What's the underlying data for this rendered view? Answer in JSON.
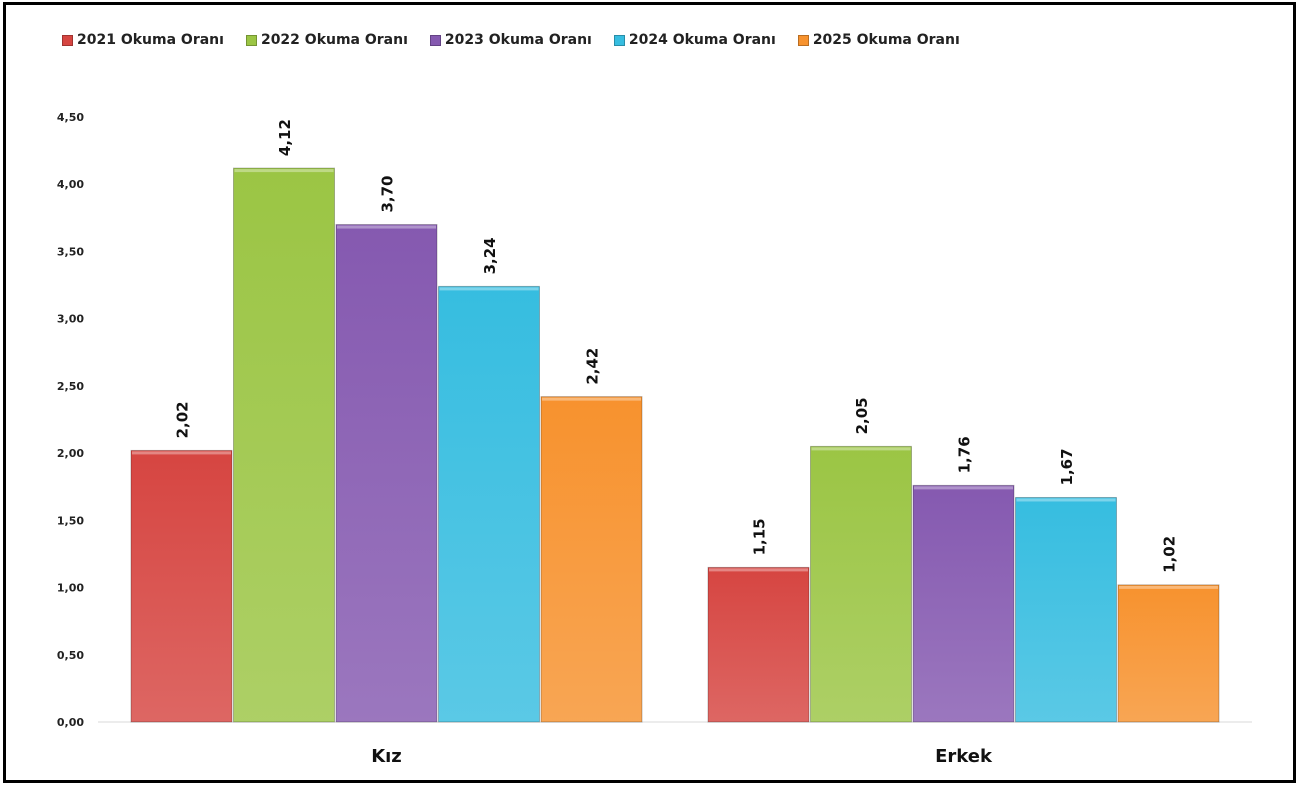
{
  "chart_data": {
    "type": "bar",
    "title": "",
    "xlabel": "",
    "ylabel": "",
    "categories": [
      "Kız",
      "Erkek"
    ],
    "series": [
      {
        "name": "2021 Okuma Oranı",
        "values": [
          2.02,
          1.15
        ],
        "labels": [
          "2,02",
          "1,15"
        ],
        "color": "#d64541"
      },
      {
        "name": "2022 Okuma Oranı",
        "values": [
          4.12,
          2.05
        ],
        "labels": [
          "4,12",
          "2,05"
        ],
        "color": "#9bc544"
      },
      {
        "name": "2023 Okuma Oranı",
        "values": [
          3.7,
          1.76
        ],
        "labels": [
          "3,70",
          "1,76"
        ],
        "color": "#8559b0"
      },
      {
        "name": "2024 Okuma Oranı",
        "values": [
          3.24,
          1.67
        ],
        "labels": [
          "3,24",
          "1,67"
        ],
        "color": "#36bde0"
      },
      {
        "name": "2025 Okuma Oranı",
        "values": [
          2.42,
          1.02
        ],
        "labels": [
          "2,42",
          "1,02"
        ],
        "color": "#f7922e"
      }
    ],
    "ylim": [
      0,
      4.5
    ],
    "yticks": [
      "0,00",
      "0,50",
      "1,00",
      "1,50",
      "2,00",
      "2,50",
      "3,00",
      "3,50",
      "4,00",
      "4,50"
    ],
    "grid": false,
    "legend_position": "top-left"
  }
}
